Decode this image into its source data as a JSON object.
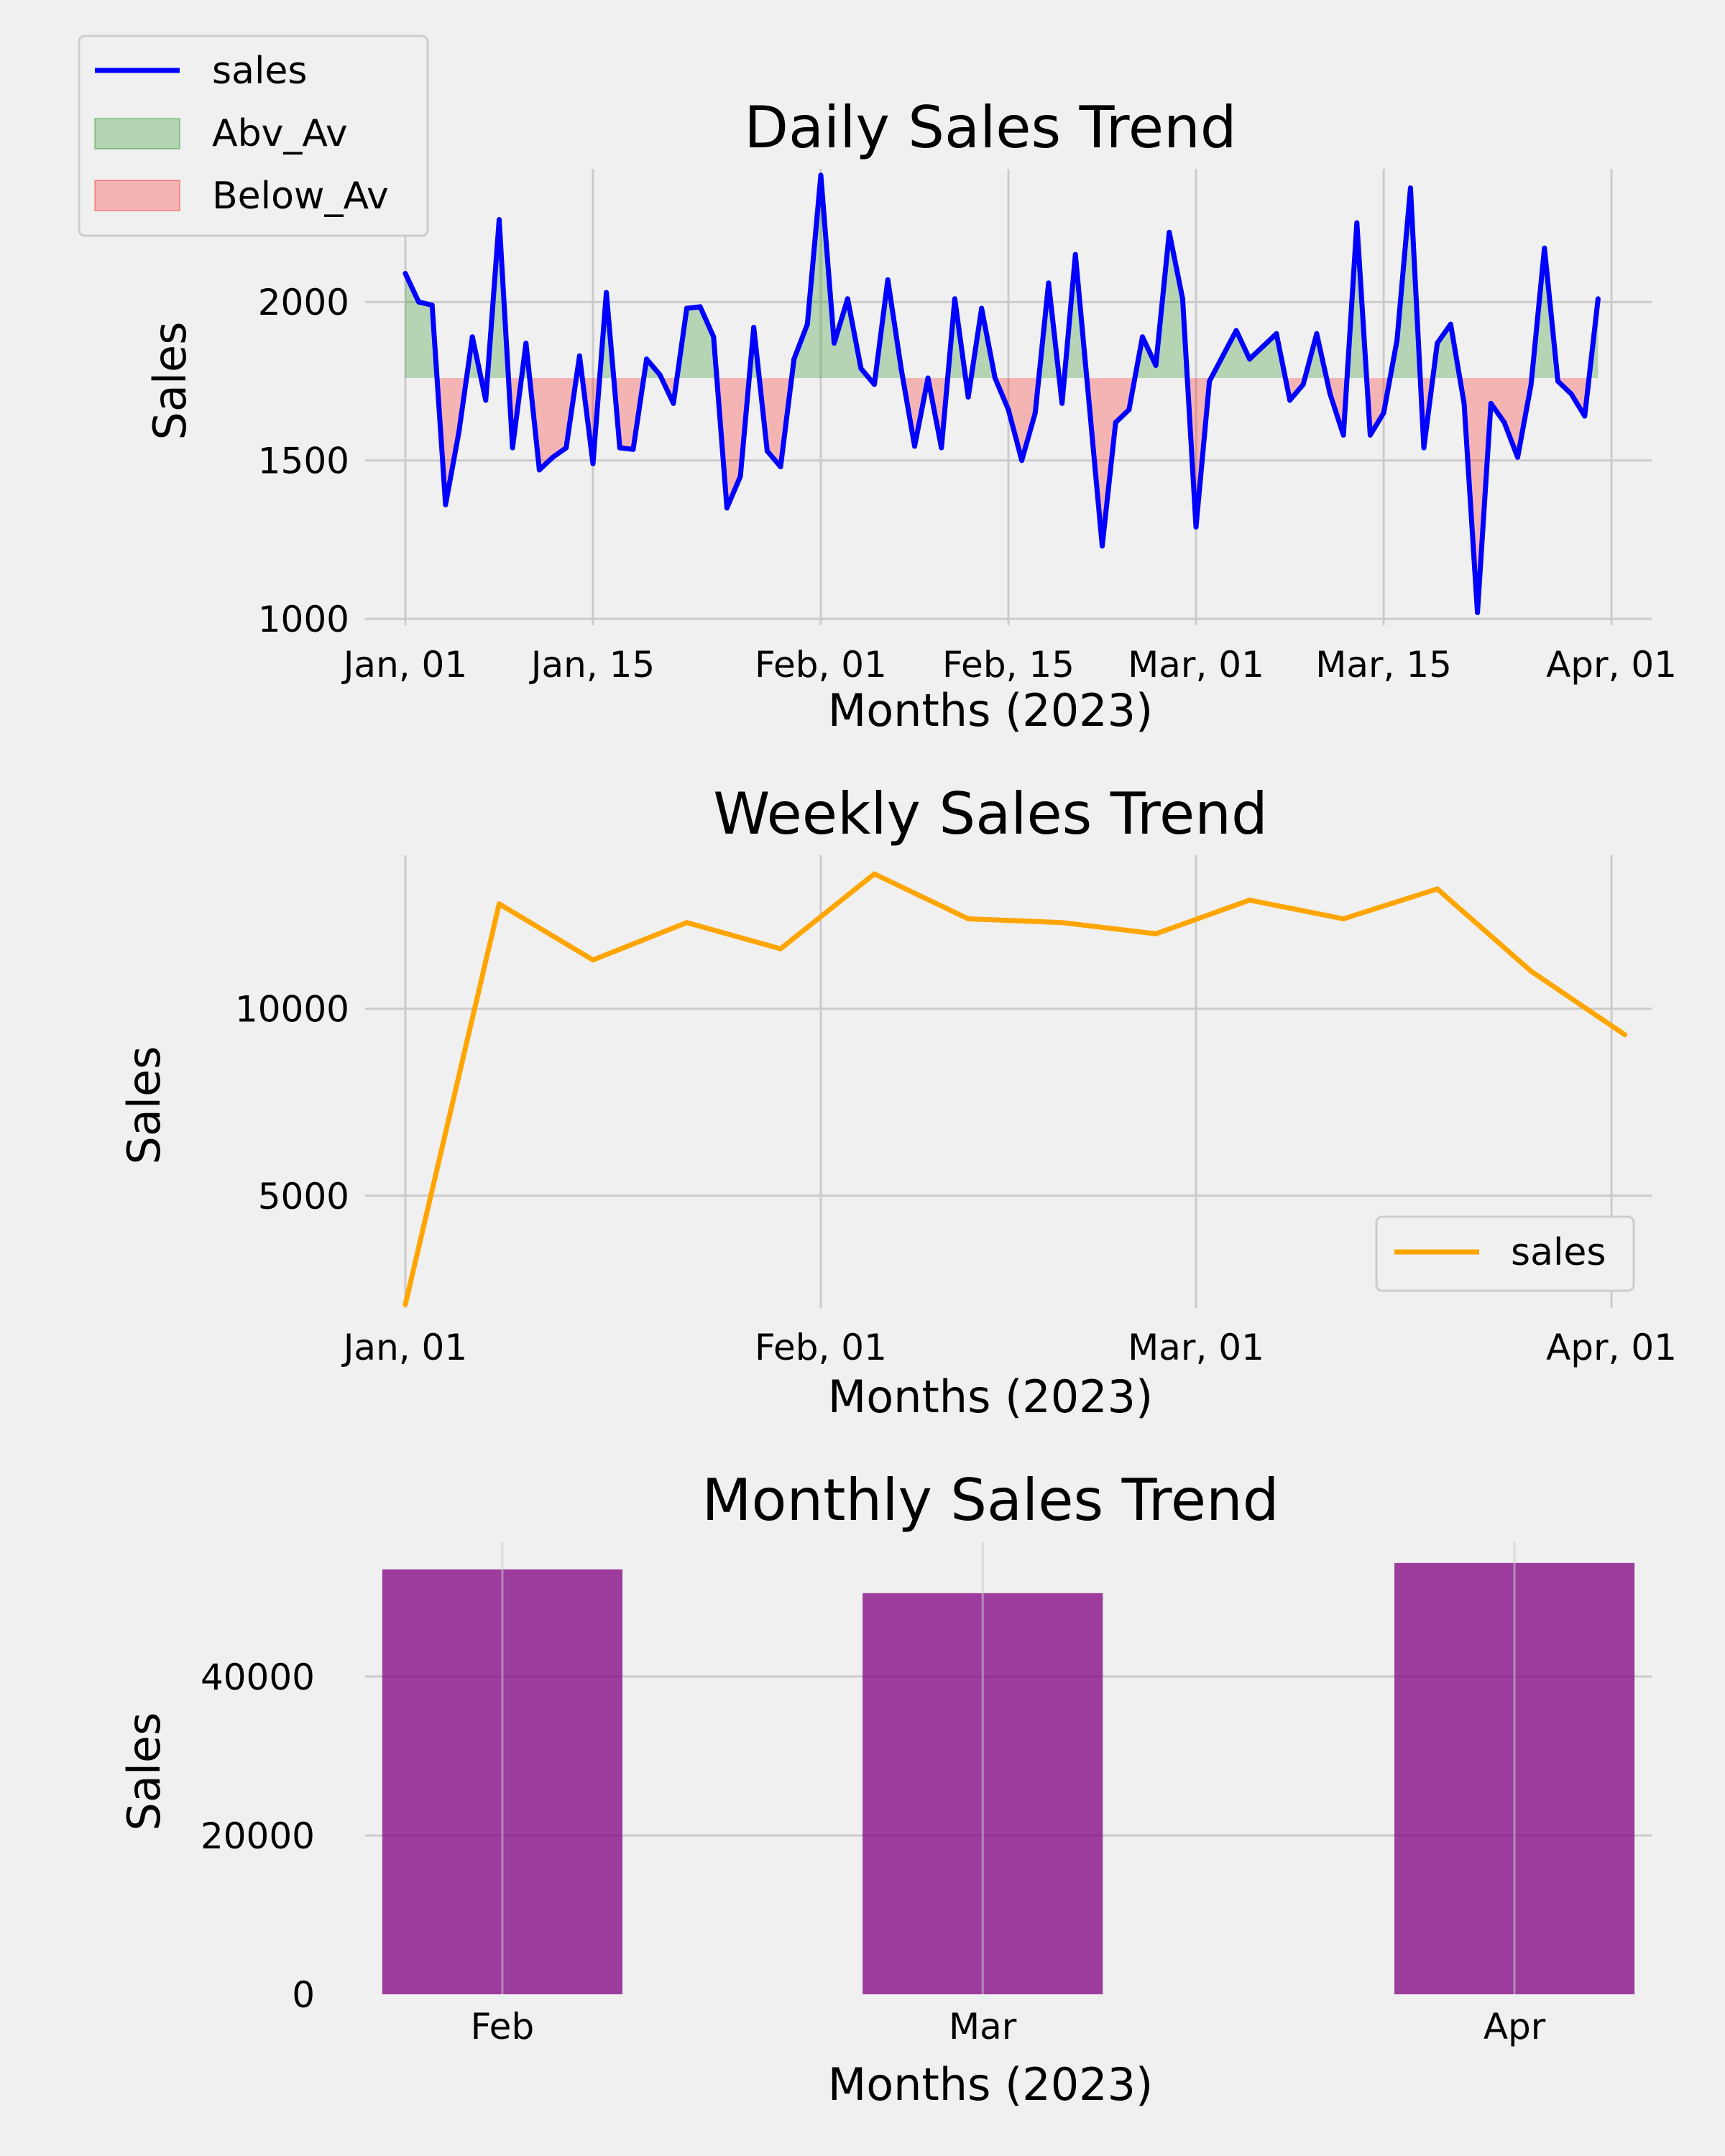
{
  "colors": {
    "background": "#f0f0f0",
    "grid": "#cbcbcb",
    "daily_line": "#0000ff",
    "above_fill": "#008000",
    "below_fill": "#ff0000",
    "weekly_line": "#ffa500",
    "monthly_bar": "#800080"
  },
  "chart_data": [
    {
      "type": "line",
      "title": "Daily Sales Trend",
      "xlabel": "Months (2023)",
      "ylabel": "Sales",
      "x_ticks": [
        "Jan, 01",
        "Jan, 15",
        "Feb, 01",
        "Feb, 15",
        "Mar, 01",
        "Mar, 15",
        "Apr, 01"
      ],
      "x_tick_dates": [
        "2023-01-01",
        "2023-01-15",
        "2023-02-01",
        "2023-02-15",
        "2023-03-01",
        "2023-03-15",
        "2023-04-01"
      ],
      "x_range": [
        "2022-12-29",
        "2023-04-04"
      ],
      "y_ticks": [
        1000,
        1500,
        2000
      ],
      "ylim": [
        980,
        2420
      ],
      "average": 1760,
      "grid": true,
      "legend": {
        "placement": "upper-left",
        "entries": [
          {
            "label": "sales",
            "kind": "line"
          },
          {
            "label": "Abv_Av",
            "kind": "patch"
          },
          {
            "label": "Below_Av",
            "kind": "patch"
          }
        ]
      },
      "series": [
        {
          "name": "sales",
          "start_date": "2023-01-01",
          "values": [
            2090,
            2000,
            1990,
            1360,
            1590,
            1890,
            1690,
            2260,
            1540,
            1870,
            1470,
            1510,
            1540,
            1830,
            1490,
            2030,
            1540,
            1535,
            1820,
            1770,
            1680,
            1980,
            1985,
            1890,
            1350,
            1450,
            1920,
            1530,
            1480,
            1820,
            1930,
            2400,
            1870,
            2010,
            1790,
            1740,
            2070,
            1790,
            1545,
            1760,
            1540,
            2010,
            1700,
            1980,
            1760,
            1660,
            1500,
            1650,
            2060,
            1680,
            2150,
            1690,
            1230,
            1620,
            1660,
            1890,
            1800,
            2220,
            2010,
            1290,
            1750,
            1830,
            1910,
            1820,
            1860,
            1900,
            1690,
            1740,
            1900,
            1710,
            1580,
            2250,
            1580,
            1650,
            1880,
            2360,
            1540,
            1870,
            1930,
            1680,
            1020,
            1680,
            1620,
            1510,
            1740,
            2170,
            1750,
            1710,
            1640,
            2010
          ]
        }
      ]
    },
    {
      "type": "line",
      "title": "Weekly Sales Trend",
      "xlabel": "Months (2023)",
      "ylabel": "Sales",
      "x_ticks": [
        "Jan, 01",
        "Feb, 01",
        "Mar, 01",
        "Apr, 01"
      ],
      "x_tick_dates": [
        "2023-01-01",
        "2023-02-01",
        "2023-03-01",
        "2023-04-01"
      ],
      "x_range": [
        "2022-12-29",
        "2023-04-04"
      ],
      "y_ticks": [
        5000,
        10000
      ],
      "ylim": [
        2000,
        14100
      ],
      "grid": true,
      "legend": {
        "placement": "lower-right",
        "entries": [
          {
            "label": "sales",
            "kind": "line"
          }
        ]
      },
      "series": [
        {
          "name": "sales",
          "x": [
            "2023-01-01",
            "2023-01-08",
            "2023-01-15",
            "2023-01-22",
            "2023-01-29",
            "2023-02-05",
            "2023-02-12",
            "2023-02-19",
            "2023-02-26",
            "2023-03-05",
            "2023-03-12",
            "2023-03-19",
            "2023-03-26",
            "2023-04-02"
          ],
          "values": [
            2090,
            12800,
            11300,
            12300,
            11600,
            13600,
            12400,
            12300,
            12000,
            12900,
            12400,
            13200,
            11000,
            9300
          ]
        }
      ]
    },
    {
      "type": "bar",
      "title": "Monthly Sales Trend",
      "xlabel": "Months (2023)",
      "ylabel": "Sales",
      "categories": [
        "Feb",
        "Mar",
        "Apr"
      ],
      "category_dates": [
        "2023-01-31",
        "2023-02-28",
        "2023-03-31"
      ],
      "x_range": [
        "2023-01-23",
        "2023-04-08"
      ],
      "y_ticks": [
        0,
        20000,
        40000
      ],
      "ylim": [
        0,
        57000
      ],
      "grid": true,
      "series": [
        {
          "values": [
            53500,
            50500,
            54300
          ]
        }
      ]
    }
  ]
}
